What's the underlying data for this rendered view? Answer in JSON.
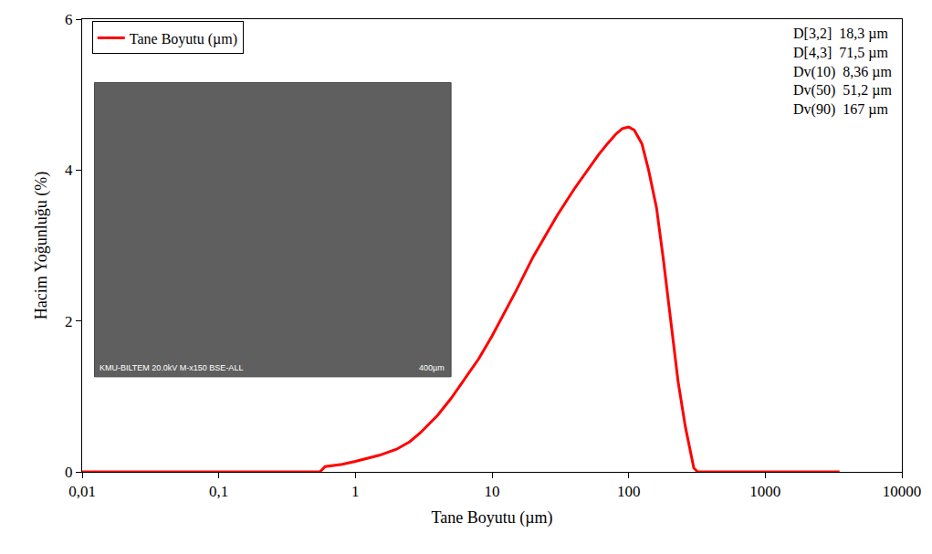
{
  "chart_data": {
    "type": "line",
    "x_label": "Tane Boyutu (µm)",
    "y_label": "Hacim Yoğunluğu (%)",
    "log": "x",
    "grid": false,
    "legend": "top left",
    "xlim": [
      0.01,
      10000
    ],
    "xticks": [
      {
        "value": 0.01,
        "label": "0,01"
      },
      {
        "value": 0.1,
        "label": "0,1"
      },
      1,
      10,
      100,
      1000,
      10000
    ],
    "ylim": [
      0,
      6
    ],
    "yticks": [
      0,
      2,
      4,
      6
    ],
    "series": [
      {
        "name": "Tane Boyutu (µm)",
        "color": "#ff0000",
        "line_style": "solid",
        "x": [
          0.01,
          0.55,
          0.6,
          0.8,
          1,
          1.5,
          2,
          2.5,
          3,
          4,
          5,
          6,
          8,
          10,
          15,
          20,
          30,
          40,
          50,
          60,
          70,
          80,
          90,
          100,
          110,
          125,
          140,
          160,
          180,
          200,
          230,
          260,
          300,
          320,
          350,
          1000,
          3500
        ],
        "values": [
          0,
          0,
          0.07,
          0.1,
          0.14,
          0.22,
          0.3,
          0.4,
          0.52,
          0.75,
          0.97,
          1.17,
          1.5,
          1.8,
          2.4,
          2.85,
          3.4,
          3.75,
          4.0,
          4.2,
          4.35,
          4.47,
          4.55,
          4.57,
          4.53,
          4.35,
          4.0,
          3.5,
          2.8,
          2.1,
          1.2,
          0.6,
          0.05,
          0,
          0,
          0,
          0
        ]
      }
    ],
    "annotations": [
      "D[3,2]  18,3 µm",
      "D[4,3]  71,5 µm",
      "Dv(10)  8,36 µm",
      "Dv(50)  51,2 µm",
      "Dv(90)  167 µm"
    ],
    "inset": {
      "caption": "KMU-BILTEM 20.0kV M-x150 BSE-ALL",
      "scale_bar": "400µm"
    }
  }
}
